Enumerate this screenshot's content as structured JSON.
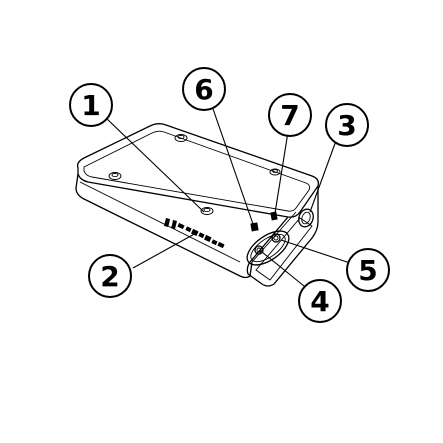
{
  "diagram": {
    "callouts": [
      {
        "id": "1",
        "label": "1"
      },
      {
        "id": "2",
        "label": "2"
      },
      {
        "id": "3",
        "label": "3"
      },
      {
        "id": "4",
        "label": "4"
      },
      {
        "id": "5",
        "label": "5"
      },
      {
        "id": "6",
        "label": "6"
      },
      {
        "id": "7",
        "label": "7"
      }
    ]
  }
}
